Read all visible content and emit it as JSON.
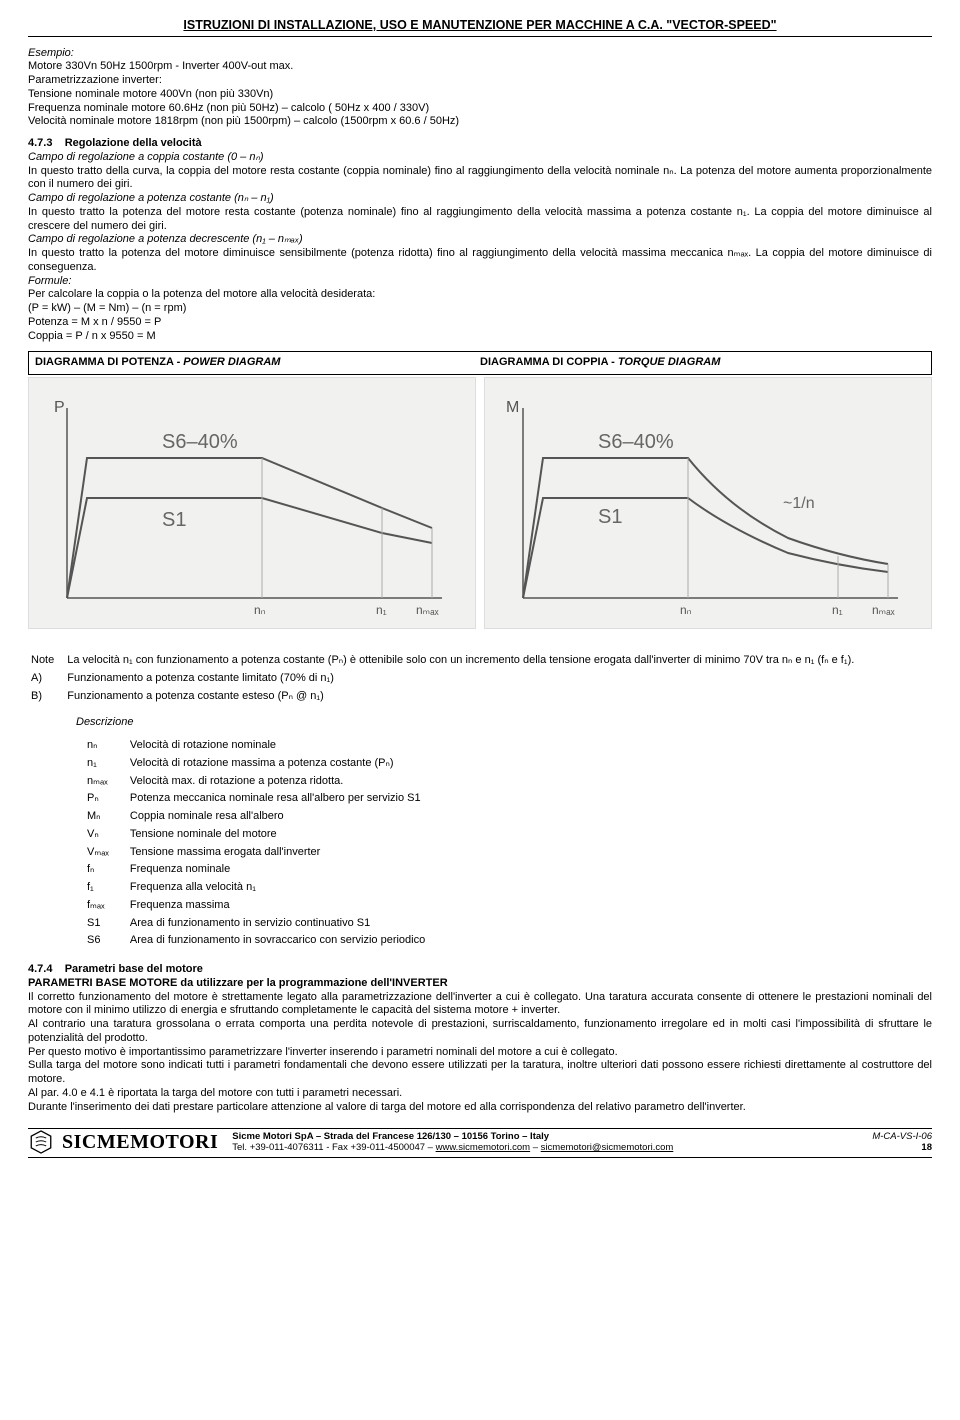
{
  "doc_title": "ISTRUZIONI DI INSTALLAZIONE, USO E MANUTENZIONE PER MACCHINE A C.A. \"VECTOR-SPEED\"",
  "example": {
    "heading": "Esempio:",
    "l1": "Motore 330Vn 50Hz 1500rpm - Inverter 400V-out max.",
    "l2": "Parametrizzazione inverter:",
    "l3": "Tensione nominale motore 400Vn (non più 330Vn)",
    "l4": "Frequenza nominale motore 60.6Hz (non più 50Hz) – calcolo ( 50Hz x 400 / 330V)",
    "l5": "Velocità nominale motore 1818rpm (non più 1500rpm) – calcolo (1500rpm x 60.6 / 50Hz)"
  },
  "s473": {
    "num": "4.7.3",
    "title": "Regolazione della velocità",
    "p1_label": "Campo di regolazione a coppia costante (0 – nₙ)",
    "p1": "In questo tratto della curva, la coppia del motore resta costante (coppia nominale) fino al raggiungimento della velocità nominale nₙ. La potenza del motore aumenta proporzionalmente con il numero dei giri.",
    "p2_label": "Campo di regolazione a potenza costante (nₙ – n₁)",
    "p2": "In questo tratto la potenza del motore resta costante (potenza nominale) fino al raggiungimento della velocità massima a potenza costante n₁. La coppia del motore diminuisce al crescere del numero dei giri.",
    "p3_label": "Campo di regolazione a potenza decrescente (n₁ – nₘₐₓ)",
    "p3": "In questo tratto la potenza del motore diminuisce sensibilmente (potenza ridotta) fino al raggiungimento della velocità massima meccanica nₘₐₓ. La coppia del motore diminuisce di conseguenza.",
    "formula_label": "Formule:",
    "f1": "Per calcolare la coppia o la potenza del motore alla velocità desiderata:",
    "f2": "(P = kW) – (M = Nm) – (n = rpm)",
    "f3": "Potenza =  M x n / 9550 = P",
    "f4": "Coppia =   P / n x 9550 = M"
  },
  "diagram_headers": {
    "left": "DIAGRAMMA DI POTENZA - ",
    "left_it": "POWER DIAGRAM",
    "right": "DIAGRAMMA DI COPPIA - ",
    "right_it": "TORQUE DIAGRAM"
  },
  "power_chart": {
    "type": "line",
    "y_label": "P",
    "curve_labels": [
      "S6–40%",
      "S1"
    ],
    "x_ticks": [
      "nₙ",
      "n₁",
      "nₘₐₓ"
    ],
    "background_color": "#f1f1ef",
    "line_color": "#555555",
    "line_width": 2,
    "curves": {
      "s1": [
        [
          35,
          220
        ],
        [
          55,
          120
        ],
        [
          230,
          120
        ],
        [
          350,
          155
        ],
        [
          400,
          165
        ]
      ],
      "s6": [
        [
          35,
          220
        ],
        [
          55,
          80
        ],
        [
          230,
          80
        ],
        [
          350,
          130
        ],
        [
          400,
          150
        ]
      ]
    },
    "xlim": [
      35,
      400
    ],
    "ylim": [
      60,
      220
    ]
  },
  "torque_chart": {
    "type": "line",
    "y_label": "M",
    "curve_labels": [
      "S6–40%",
      "S1",
      "~1/n"
    ],
    "x_ticks": [
      "nₙ",
      "n₁",
      "nₘₐₓ"
    ],
    "background_color": "#f1f1ef",
    "line_color": "#555555",
    "line_width": 2,
    "curves": {
      "s1": [
        [
          35,
          220
        ],
        [
          55,
          120
        ],
        [
          200,
          120
        ],
        [
          240,
          150
        ],
        [
          300,
          175
        ],
        [
          360,
          188
        ],
        [
          400,
          192
        ]
      ],
      "s6": [
        [
          35,
          220
        ],
        [
          55,
          80
        ],
        [
          200,
          80
        ],
        [
          240,
          120
        ],
        [
          300,
          160
        ],
        [
          360,
          178
        ],
        [
          400,
          186
        ]
      ]
    },
    "xlim": [
      35,
      400
    ],
    "ylim": [
      60,
      220
    ]
  },
  "notes": {
    "note_label": "Note",
    "note_text": "La velocità n₁ con funzionamento a potenza costante (Pₙ) è ottenibile solo con un incremento della tensione erogata dall'inverter di minimo 70V tra nₙ e n₁ (fₙ e f₁).",
    "a_label": "A)",
    "a_text": "Funzionamento a potenza costante limitato (70% di n₁)",
    "b_label": "B)",
    "b_text": "Funzionamento a potenza costante esteso (Pₙ @ n₁)"
  },
  "defs": {
    "heading": "Descrizione",
    "rows": [
      {
        "sym": "nₙ",
        "txt": "Velocità di rotazione nominale"
      },
      {
        "sym": "n₁",
        "txt": "Velocità di rotazione massima a potenza costante (Pₙ)"
      },
      {
        "sym": "nₘₐₓ",
        "txt": "Velocità max. di rotazione a potenza ridotta."
      },
      {
        "sym": "Pₙ",
        "txt": "Potenza meccanica nominale resa all'albero per servizio S1"
      },
      {
        "sym": "Mₙ",
        "txt": "Coppia nominale resa all'albero"
      },
      {
        "sym": "Vₙ",
        "txt": "Tensione nominale del motore"
      },
      {
        "sym": "Vₘₐₓ",
        "txt": "Tensione massima erogata dall'inverter"
      },
      {
        "sym": "fₙ",
        "txt": "Frequenza nominale"
      },
      {
        "sym": "f₁",
        "txt": "Frequenza alla velocità n₁"
      },
      {
        "sym": "fₘₐₓ",
        "txt": "Frequenza massima"
      },
      {
        "sym": "S1",
        "txt": "Area di funzionamento in servizio continuativo S1"
      },
      {
        "sym": "S6",
        "txt": "Area di funzionamento in sovraccarico con servizio periodico"
      }
    ]
  },
  "s474": {
    "num": "4.7.4",
    "title": "Parametri base del motore",
    "sub": "PARAMETRI BASE MOTORE da utilizzare per la programmazione dell'INVERTER",
    "p1": "Il corretto funzionamento del motore è strettamente legato alla parametrizzazione dell'inverter a cui è collegato. Una taratura accurata consente di ottenere le prestazioni nominali del motore con il minimo utilizzo di energia e sfruttando completamente le capacità del sistema motore + inverter.",
    "p2": "Al contrario una taratura grossolana o errata comporta una perdita notevole di prestazioni, surriscaldamento, funzionamento irregolare ed in molti casi l'impossibilità di sfruttare le potenzialità del prodotto.",
    "p3": "Per questo motivo è importantissimo parametrizzare l'inverter inserendo i parametri nominali del motore a cui è collegato.",
    "p4": "Sulla targa del motore sono indicati tutti i parametri fondamentali che devono essere utilizzati per la taratura, inoltre ulteriori dati possono essere richiesti direttamente al costruttore del motore.",
    "p5": "Al par. 4.0 e 4.1 è riportata la targa del motore con tutti i parametri necessari.",
    "p6": "Durante l'inserimento dei dati prestare particolare attenzione al valore di targa del motore ed alla corrispondenza del relativo parametro dell'inverter."
  },
  "footer": {
    "brand": "SICMEMOTORI",
    "addr": "Sicme Motori SpA – Strada del Francese 126/130 – 10156 Torino – Italy",
    "tel": "Tel. +39-011-4076311 - Fax +39-011-4500047 – ",
    "url1": "www.sicmemotori.com",
    "sep": " – ",
    "url2": "sicmemotori@sicmemotori.com",
    "code": "M-CA-VS-I-06",
    "page": "18"
  }
}
